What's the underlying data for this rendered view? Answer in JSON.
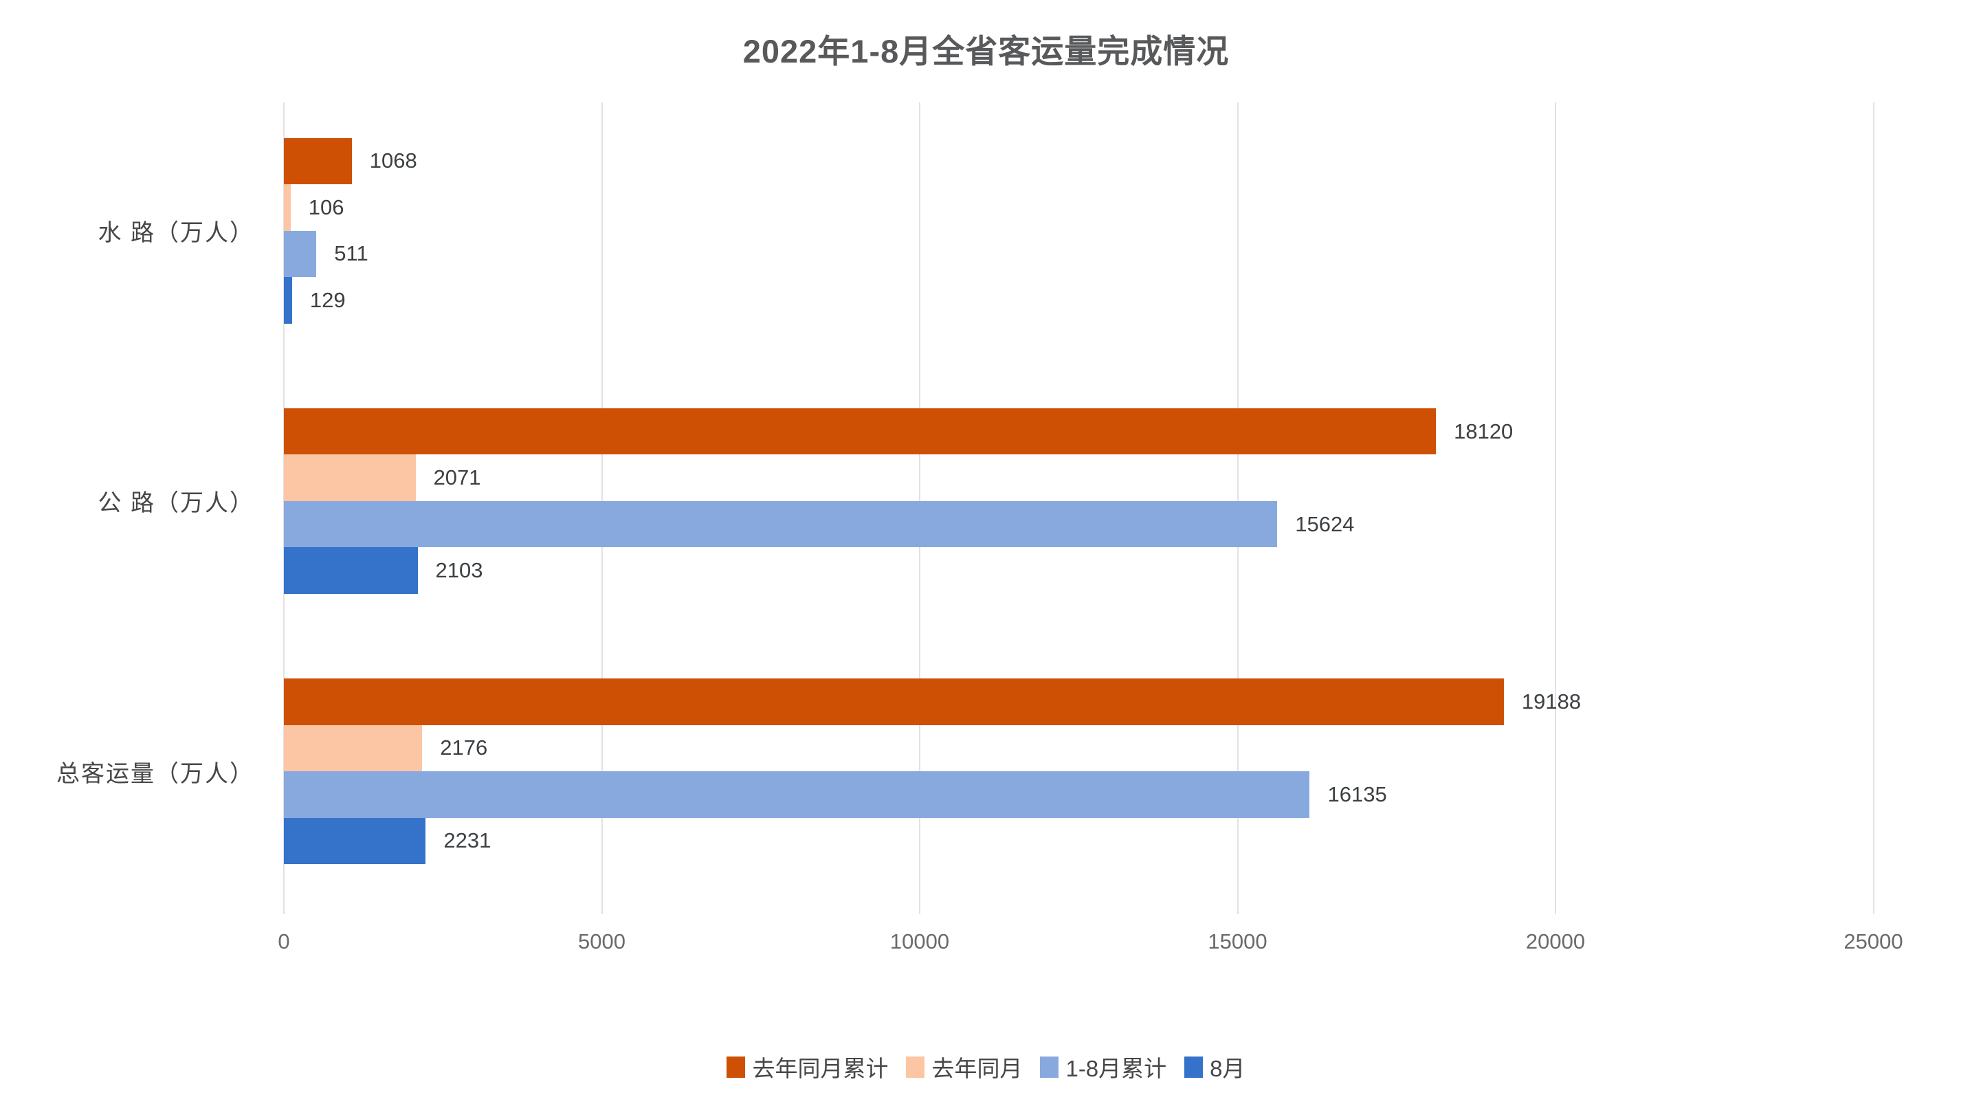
{
  "title": "2022年1-8月全省客运量完成情况",
  "colors": {
    "series_last_year_cum": "#ce5004",
    "series_last_year_month": "#fcc6a4",
    "series_jan_aug_cum": "#88a9de",
    "series_august": "#3473c9",
    "gridline": "#e2e2e2",
    "title_text": "#58595b",
    "value_label_text": "#3c4043",
    "category_text": "#474747",
    "tick_text": "#6a6a6a"
  },
  "chart_data": {
    "type": "bar",
    "orientation": "horizontal",
    "title": "2022年1-8月全省客运量完成情况",
    "categories": [
      "水 路（万人）",
      "公 路（万人）",
      "总客运量（万人）"
    ],
    "series": [
      {
        "name": "去年同月累计",
        "color": "#ce5004",
        "values": [
          1068,
          18120,
          19188
        ]
      },
      {
        "name": "去年同月",
        "color": "#fcc6a4",
        "values": [
          106,
          2071,
          2176
        ]
      },
      {
        "name": "1-8月累计",
        "color": "#88a9de",
        "values": [
          511,
          15624,
          16135
        ]
      },
      {
        "name": "8月",
        "color": "#3473c9",
        "values": [
          129,
          2103,
          2231
        ]
      }
    ],
    "x_axis": {
      "min": 0,
      "max": 25000,
      "ticks": [
        0,
        5000,
        10000,
        15000,
        20000,
        25000
      ]
    },
    "grid": true,
    "data_labels": true,
    "legend_position": "bottom",
    "category_order_top_to_bottom": true
  }
}
